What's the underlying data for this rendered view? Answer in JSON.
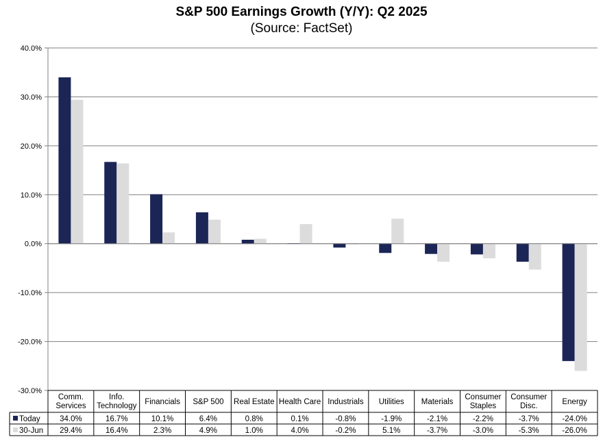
{
  "chart_data": {
    "type": "bar",
    "title": "S&P 500 Earnings Growth (Y/Y): Q2 2025",
    "subtitle": "(Source: FactSet)",
    "categories": [
      [
        "Comm.",
        "Services"
      ],
      [
        "Info.",
        "Technology"
      ],
      [
        "Financials"
      ],
      [
        "S&P 500"
      ],
      [
        "Real Estate"
      ],
      [
        "Health Care"
      ],
      [
        "Industrials"
      ],
      [
        "Utilities"
      ],
      [
        "Materials"
      ],
      [
        "Consumer",
        "Staples"
      ],
      [
        "Consumer",
        "Disc."
      ],
      [
        "Energy"
      ]
    ],
    "series": [
      {
        "name": "Today",
        "color": "#1b2656",
        "values": [
          34.0,
          16.7,
          10.1,
          6.4,
          0.8,
          0.1,
          -0.8,
          -1.9,
          -2.1,
          -2.2,
          -3.7,
          -24.0
        ],
        "labels": [
          "34.0%",
          "16.7%",
          "10.1%",
          "6.4%",
          "0.8%",
          "0.1%",
          "-0.8%",
          "-1.9%",
          "-2.1%",
          "-2.2%",
          "-3.7%",
          "-24.0%"
        ]
      },
      {
        "name": "30-Jun",
        "color": "#dcdcdc",
        "values": [
          29.4,
          16.4,
          2.3,
          4.9,
          1.0,
          4.0,
          -0.2,
          5.1,
          -3.7,
          -3.0,
          -5.3,
          -26.0
        ],
        "labels": [
          "29.4%",
          "16.4%",
          "2.3%",
          "4.9%",
          "1.0%",
          "4.0%",
          "-0.2%",
          "5.1%",
          "-3.7%",
          "-3.0%",
          "-5.3%",
          "-26.0%"
        ]
      }
    ],
    "ylim": [
      -30,
      40
    ],
    "yticks": [
      40,
      30,
      20,
      10,
      0,
      -10,
      -20,
      -30
    ],
    "ytick_labels": [
      "40.0%",
      "30.0%",
      "20.0%",
      "10.0%",
      "0.0%",
      "-10.0%",
      "-20.0%",
      "-30.0%"
    ],
    "grid": true,
    "legend": "data-table"
  }
}
